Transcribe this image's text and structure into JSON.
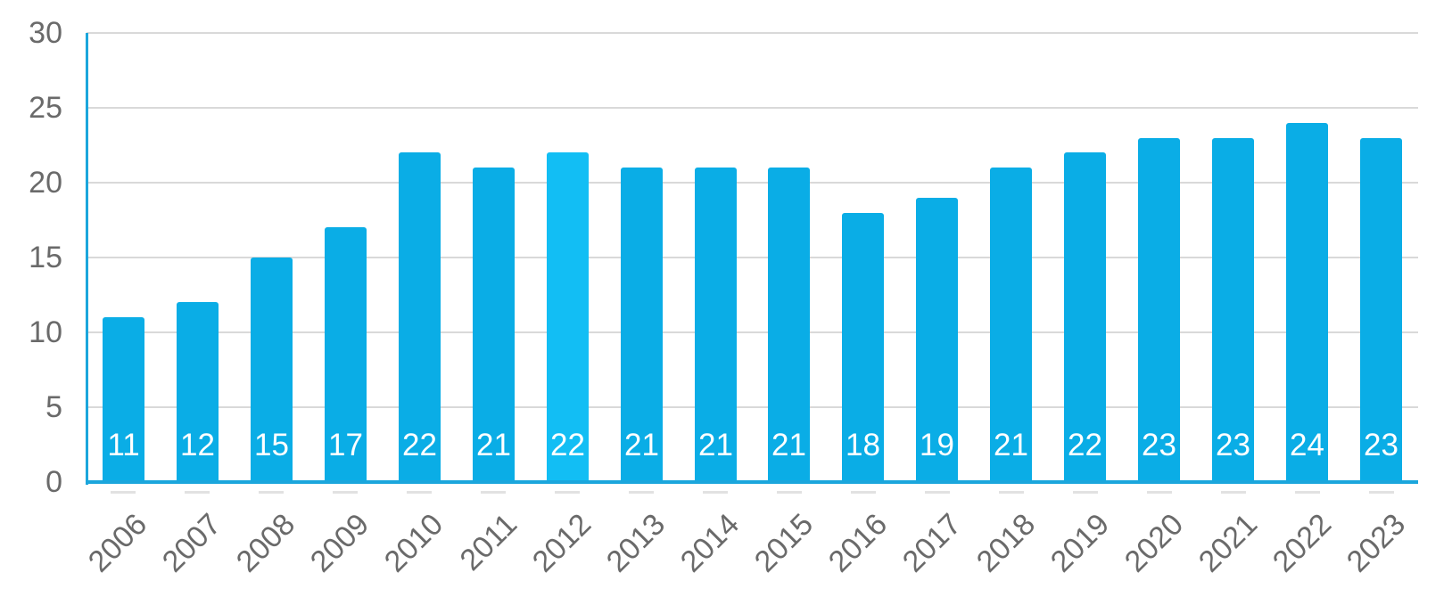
{
  "chart_data": {
    "type": "bar",
    "title": "",
    "xlabel": "",
    "ylabel": "",
    "categories": [
      "2006",
      "2007",
      "2008",
      "2009",
      "2010",
      "2011",
      "2012",
      "2013",
      "2014",
      "2015",
      "2016",
      "2017",
      "2018",
      "2019",
      "2020",
      "2021",
      "2022",
      "2023"
    ],
    "values": [
      11,
      12,
      15,
      17,
      22,
      21,
      22,
      21,
      21,
      21,
      18,
      19,
      21,
      22,
      23,
      23,
      24,
      23
    ],
    "data_labels_shown": true,
    "data_label_position": "inside-base",
    "highlighted_category": "2012",
    "highlighted_index": 6,
    "ylim": [
      0,
      30
    ],
    "yticks": [
      0,
      5,
      10,
      15,
      20,
      25,
      30
    ],
    "grid": "horizontal",
    "legend": "none",
    "x_tick_rotation_degrees": 45,
    "colors": {
      "bar": "#0aade6",
      "bar_highlight": "#12bef4",
      "axis_line": "#1ba6dc",
      "gridline": "#d9d9d9",
      "tick_label_text": "#6a6a6a",
      "data_label_text": "#ffffff",
      "background": "#ffffff"
    }
  }
}
